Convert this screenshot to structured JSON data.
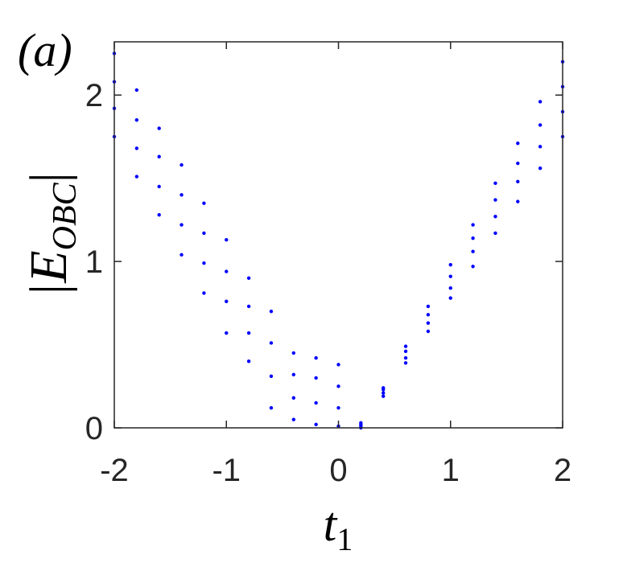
{
  "chart_data": {
    "type": "scatter",
    "title": "(a)",
    "xlabel": {
      "main": "t",
      "sub": "1"
    },
    "ylabel": {
      "main": "|E",
      "sub": "OBC",
      "end": "|"
    },
    "x": [
      -2,
      -1.8,
      -1.6,
      -1.4,
      -1.2,
      -1.0,
      -0.8,
      -0.6,
      -0.4,
      -0.2,
      0,
      0.2,
      0.4,
      0.6,
      0.8,
      1.0,
      1.2,
      1.4,
      1.6,
      1.8,
      2.0
    ],
    "series": [
      {
        "color": "#0000ff",
        "values": [
          1.75,
          1.51,
          1.28,
          1.04,
          0.81,
          0.57,
          0.4,
          0.12,
          0.05,
          0.02,
          0.01,
          0,
          0.19,
          0.39,
          0.58,
          0.78,
          0.97,
          1.17,
          1.36,
          1.56,
          1.75
        ]
      },
      {
        "color": "#0000ff",
        "values": [
          1.92,
          1.68,
          1.45,
          1.22,
          0.99,
          0.76,
          0.57,
          0.31,
          0.18,
          0.15,
          0.12,
          0.01,
          0.21,
          0.42,
          0.63,
          0.84,
          1.06,
          1.27,
          1.48,
          1.69,
          1.9
        ]
      },
      {
        "color": "#0000ff",
        "values": [
          2.08,
          1.85,
          1.63,
          1.4,
          1.17,
          0.94,
          0.73,
          0.51,
          0.32,
          0.3,
          0.25,
          0.02,
          0.23,
          0.46,
          0.68,
          0.91,
          1.14,
          1.37,
          1.59,
          1.82,
          2.05
        ]
      },
      {
        "color": "#0000ff",
        "values": [
          2.25,
          2.03,
          1.8,
          1.58,
          1.35,
          1.13,
          0.9,
          0.7,
          0.45,
          0.42,
          0.38,
          0.03,
          0.24,
          0.49,
          0.73,
          0.98,
          1.22,
          1.47,
          1.71,
          1.96,
          2.2
        ]
      }
    ],
    "xlim": [
      -2,
      2
    ],
    "ylim": [
      0,
      2.32
    ],
    "xticks": [
      -2,
      -1,
      0,
      1,
      2
    ],
    "yticks": [
      0,
      1,
      2
    ],
    "grid": false
  }
}
